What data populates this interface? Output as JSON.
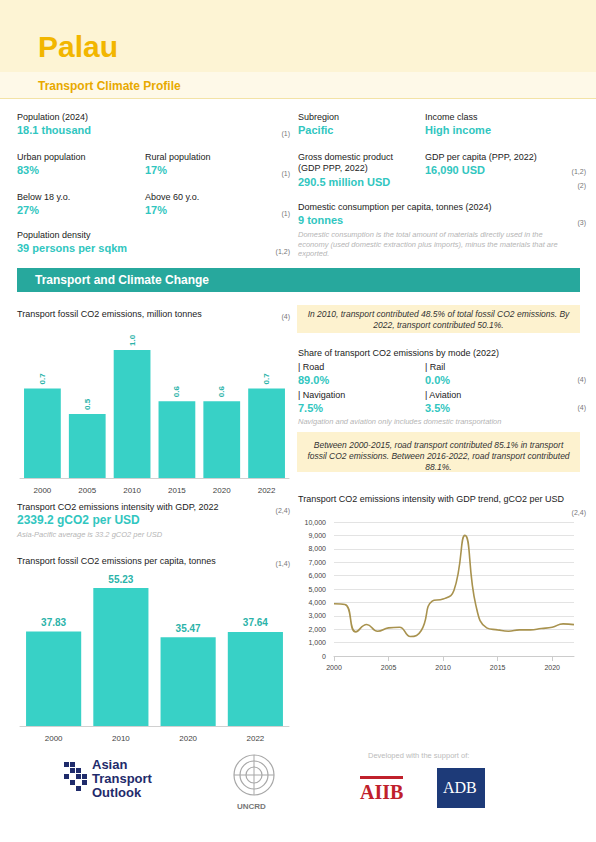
{
  "header": {
    "title": "Palau",
    "subtitle": "Transport Climate Profile"
  },
  "profile": {
    "items": [
      {
        "label": "Population (2024)",
        "value": "18.1 thousand"
      },
      {
        "label": "Urban population",
        "value": "83%"
      },
      {
        "label": "Rural population",
        "value": "17%"
      },
      {
        "label": "Below 18 y.o.",
        "value": "27%"
      },
      {
        "label": "Above 60 y.o.",
        "value": "17%"
      },
      {
        "label": "Population density",
        "value": "39 persons per sqkm"
      },
      {
        "label": "Subregion",
        "value": "Pacific"
      },
      {
        "label": "Income class",
        "value": "High income"
      },
      {
        "label": "Gross domestic product (GDP PPP, 2022)",
        "value": "290.5 million USD"
      },
      {
        "label": "GDP per capita (PPP, 2022)",
        "value": "16,090 USD"
      },
      {
        "label": "Domestic consumption per capita, tonnes (2024)",
        "value": "9 tonnes"
      }
    ],
    "sources": [
      "(1)",
      "(1)",
      "(1)",
      "(1,2)",
      "(1,2)",
      "(2)",
      "(3)"
    ],
    "note": "Domestic consumption is the total amount of materials directly used in the economy (used domestic extraction plus imports), minus the materials that are exported."
  },
  "section_title": "Transport and Climate Change",
  "highlights": [
    "In 2010, transport contributed 48.5% of total fossil CO2 emissions. By 2022, transport contributed 50.1%.",
    "Between 2000-2015, road transport contributed 85.1% in transport fossil CO2 emissions. Between 2016-2022, road transport contributed 88.1%."
  ],
  "mode_share": {
    "title": "Share of transport CO2 emissions by mode (2022)",
    "items": [
      {
        "label": "| Road",
        "value": "89.0%"
      },
      {
        "label": "| Rail",
        "value": "0.0%"
      },
      {
        "label": "| Navigation",
        "value": "7.5%"
      },
      {
        "label": "| Aviation",
        "value": "3.5%"
      }
    ],
    "sources": [
      "(4)",
      "(4)"
    ],
    "note": "Navigation and aviation only includes domestic transportation"
  },
  "intensity": {
    "title": "Transport CO2 emissions intensity with GDP, 2022",
    "value": "2339.2 gCO2 per USD",
    "source": "(2,4)",
    "note": "Asia-Pacific average is 33.2 gCO2 per USD"
  },
  "chart_data": [
    {
      "type": "bar",
      "title": "Transport fossil CO2 emissions, million tonnes",
      "source": "(4)",
      "categories": [
        "2000",
        "2005",
        "2010",
        "2015",
        "2020",
        "2022"
      ],
      "values": [
        0.7,
        0.5,
        1.0,
        0.6,
        0.6,
        0.7
      ],
      "value_labels": [
        "0.7",
        "0.5",
        "1.0",
        "0.6",
        "0.6",
        "0.7"
      ],
      "color": "#38d1c6",
      "ylim": [
        0,
        1.0
      ],
      "data_labels": true,
      "tick_labels": "x",
      "grid": false
    },
    {
      "type": "bar",
      "title": "Transport fossil CO2 emissions per capita, tonnes",
      "source": "(1,4)",
      "categories": [
        "2000",
        "2010",
        "2020",
        "2022"
      ],
      "values": [
        37.83,
        55.23,
        35.47,
        37.64
      ],
      "color": "#38d1c6",
      "ylim": [
        0,
        55.23
      ],
      "data_labels": true,
      "tick_labels": "x",
      "grid": false
    },
    {
      "type": "line",
      "title": "Transport CO2 emissions intensity with GDP trend, gCO2 per USD",
      "source": "(2,4)",
      "x": [
        2000,
        2001,
        2002,
        2003,
        2004,
        2005,
        2006,
        2007,
        2008,
        2009,
        2010,
        2011,
        2012,
        2013,
        2014,
        2015,
        2016,
        2017,
        2018,
        2019,
        2020,
        2021,
        2022
      ],
      "values": [
        3900,
        3850,
        1800,
        2350,
        1850,
        2100,
        2150,
        1450,
        1900,
        4100,
        4250,
        4900,
        9000,
        3800,
        2100,
        1950,
        1850,
        1950,
        1950,
        2050,
        2150,
        2400,
        2339.2
      ],
      "color": "#a8924e",
      "xlim": [
        2000,
        2022
      ],
      "xticks": [
        2000,
        2005,
        2010,
        2015,
        2020
      ],
      "ylim": [
        0,
        10000
      ],
      "yticks": [
        0,
        {
          "value": 1000,
          "label": "1,000"
        },
        {
          "value": 2000,
          "label": "2,000"
        },
        {
          "value": 3000,
          "label": "3,000"
        },
        {
          "value": 4000,
          "label": "4,000"
        },
        {
          "value": 5000,
          "label": "5,000"
        },
        {
          "value": 6000,
          "label": "6,000"
        },
        {
          "value": 7000,
          "label": "7,000"
        },
        {
          "value": 8000,
          "label": "8,000"
        },
        {
          "value": 9000,
          "label": "9,000"
        },
        {
          "value": 10000,
          "label": "10,000"
        }
      ],
      "grid": true,
      "marker": "none",
      "line_style": "solid"
    }
  ],
  "footer": {
    "logos": [
      "Asian Transport Outlook",
      "UNCRD",
      "AIIB",
      "ADB"
    ],
    "support_text": "Developed with the support of:"
  }
}
